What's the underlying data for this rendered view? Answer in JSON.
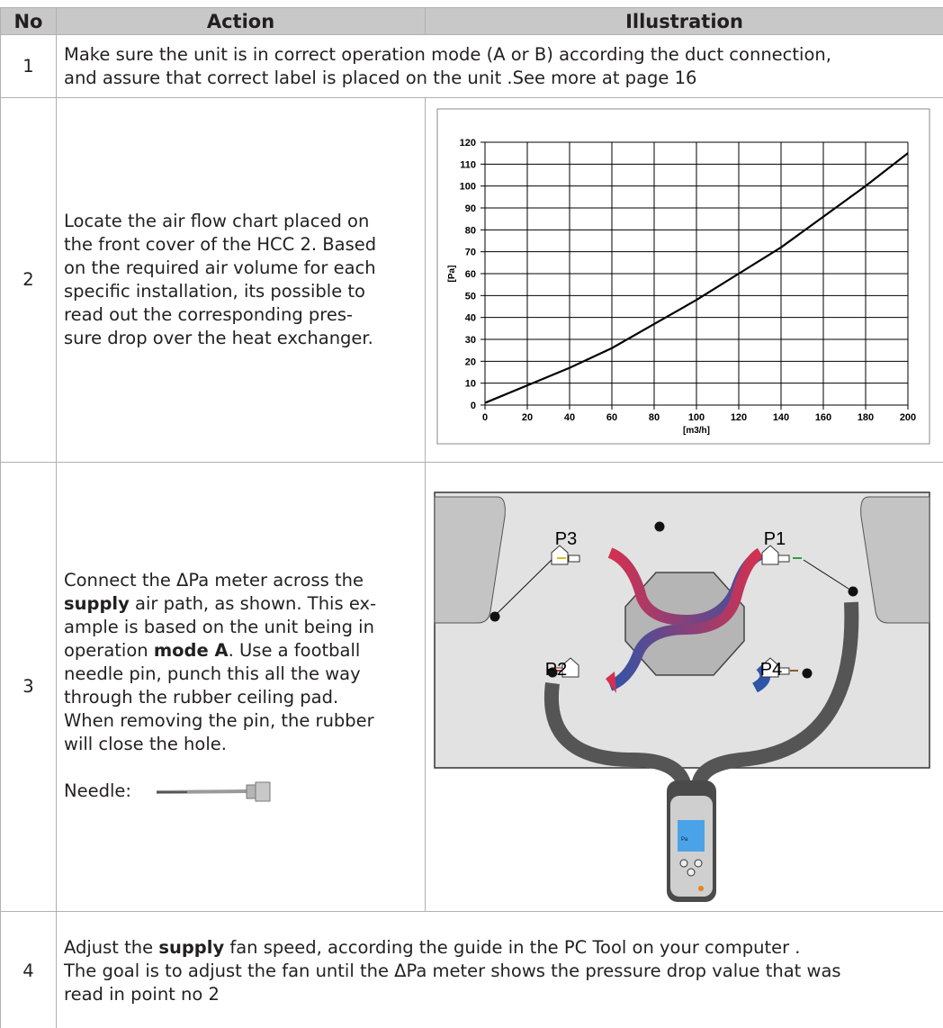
{
  "table": {
    "header": [
      "No",
      "Action",
      "Illustration"
    ],
    "rows": [
      {
        "no": "1",
        "action": [
          [
            "Make sure the unit is in correct operation mode (A or B) according the duct connection,"
          ],
          [
            "and assure that correct label is placed on the unit .See more at page 16"
          ]
        ]
      },
      {
        "no": "2",
        "action": [
          [
            "Locate the air flow chart placed on"
          ],
          [
            "the front cover of the HCC 2. Based"
          ],
          [
            "on the required air volume for each"
          ],
          [
            "specific installation, its possible to"
          ],
          [
            "read out the corresponding pres-"
          ],
          [
            "sure drop over the heat exchanger."
          ]
        ]
      },
      {
        "no": "3",
        "action": [
          [
            "Connect the ΔPa meter across the"
          ],
          [
            {
              "bold": "supply"
            },
            " air path, as shown. This ex-"
          ],
          [
            "ample is based on the unit being in"
          ],
          [
            "operation ",
            {
              "bold": "mode A"
            },
            ". Use a football"
          ],
          [
            "needle pin, punch this all the way"
          ],
          [
            "through the rubber ceiling pad."
          ],
          [
            "When removing the pin, the rubber"
          ],
          [
            "will close the hole."
          ]
        ],
        "needle": "Needle:",
        "labels": [
          "P3",
          "P1",
          "P2",
          "P4"
        ],
        "meter_unit": "Pa"
      },
      {
        "no": "4",
        "action": [
          [
            "Adjust the ",
            {
              "bold": "supply"
            },
            " fan speed, according the guide in the PC Tool on your computer ."
          ],
          [
            "The goal is to adjust the fan until the ΔPa meter shows the pressure drop value that was"
          ],
          [
            "read in point no 2"
          ]
        ]
      }
    ]
  },
  "chart_data": {
    "type": "line",
    "xlabel": "[m3/h]",
    "ylabel": "[Pa]",
    "x": [
      0,
      20,
      40,
      60,
      80,
      100,
      120,
      140,
      160,
      180,
      200
    ],
    "series": [
      {
        "color": "#000000",
        "values": [
          1,
          9,
          17,
          26,
          37,
          48,
          60,
          72,
          86,
          100,
          115
        ]
      }
    ],
    "xlim": [
      0,
      200
    ],
    "ylim": [
      0,
      120
    ],
    "xticks": [
      0,
      20,
      40,
      60,
      80,
      100,
      120,
      140,
      160,
      180,
      200
    ],
    "yticks": [
      0,
      10,
      20,
      30,
      40,
      50,
      60,
      70,
      80,
      90,
      100,
      110,
      120
    ],
    "grid": true
  }
}
